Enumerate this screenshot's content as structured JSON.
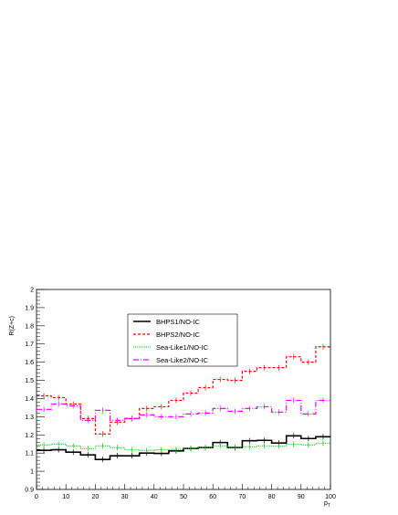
{
  "chart_data": {
    "type": "line",
    "xlabel": "p",
    "xlabel_sub": "T",
    "ylabel": "R(Z+c)",
    "xlim": [
      0,
      100
    ],
    "ylim": [
      0.9,
      2.0
    ],
    "x_ticks": [
      "0",
      "10",
      "20",
      "30",
      "40",
      "50",
      "60",
      "70",
      "80",
      "90",
      "100"
    ],
    "y_ticks": [
      "0.9",
      "1",
      "1.1",
      "1.2",
      "1.3",
      "1.4",
      "1.5",
      "1.6",
      "1.7",
      "1.8",
      "1.9",
      "2"
    ],
    "grid": false,
    "legend_position": "center-top",
    "bin_edges": [
      0,
      5,
      10,
      15,
      20,
      25,
      30,
      35,
      40,
      45,
      50,
      55,
      60,
      65,
      70,
      75,
      80,
      85,
      90,
      95,
      100
    ],
    "series": [
      {
        "name": "BHPS1/NO-IC",
        "color": "#000000",
        "dash": "",
        "width": 1.6,
        "values": [
          1.115,
          1.118,
          1.105,
          1.09,
          1.065,
          1.085,
          1.085,
          1.1,
          1.098,
          1.112,
          1.125,
          1.13,
          1.158,
          1.13,
          1.168,
          1.17,
          1.155,
          1.195,
          1.18,
          1.19
        ]
      },
      {
        "name": "BHPS2/NO-IC",
        "color": "#ff0000",
        "dash": "3,2",
        "width": 1.2,
        "values": [
          1.415,
          1.405,
          1.37,
          1.29,
          1.205,
          1.27,
          1.29,
          1.345,
          1.355,
          1.39,
          1.43,
          1.46,
          1.505,
          1.5,
          1.55,
          1.57,
          1.57,
          1.63,
          1.6,
          1.685
        ]
      },
      {
        "name": "Sea-Like1/NO-IC",
        "color": "#00cc00",
        "dash": "1,1",
        "width": 1.0,
        "values": [
          1.145,
          1.15,
          1.14,
          1.125,
          1.14,
          1.13,
          1.118,
          1.115,
          1.118,
          1.12,
          1.125,
          1.13,
          1.14,
          1.13,
          1.135,
          1.14,
          1.138,
          1.148,
          1.145,
          1.155
        ]
      },
      {
        "name": "Sea-Like2/NO-IC",
        "color": "#ff00ff",
        "dash": "6,2,1,2",
        "width": 1.2,
        "values": [
          1.34,
          1.37,
          1.36,
          1.28,
          1.335,
          1.28,
          1.29,
          1.31,
          1.3,
          1.3,
          1.315,
          1.32,
          1.345,
          1.33,
          1.345,
          1.355,
          1.325,
          1.39,
          1.315,
          1.39
        ]
      }
    ]
  }
}
